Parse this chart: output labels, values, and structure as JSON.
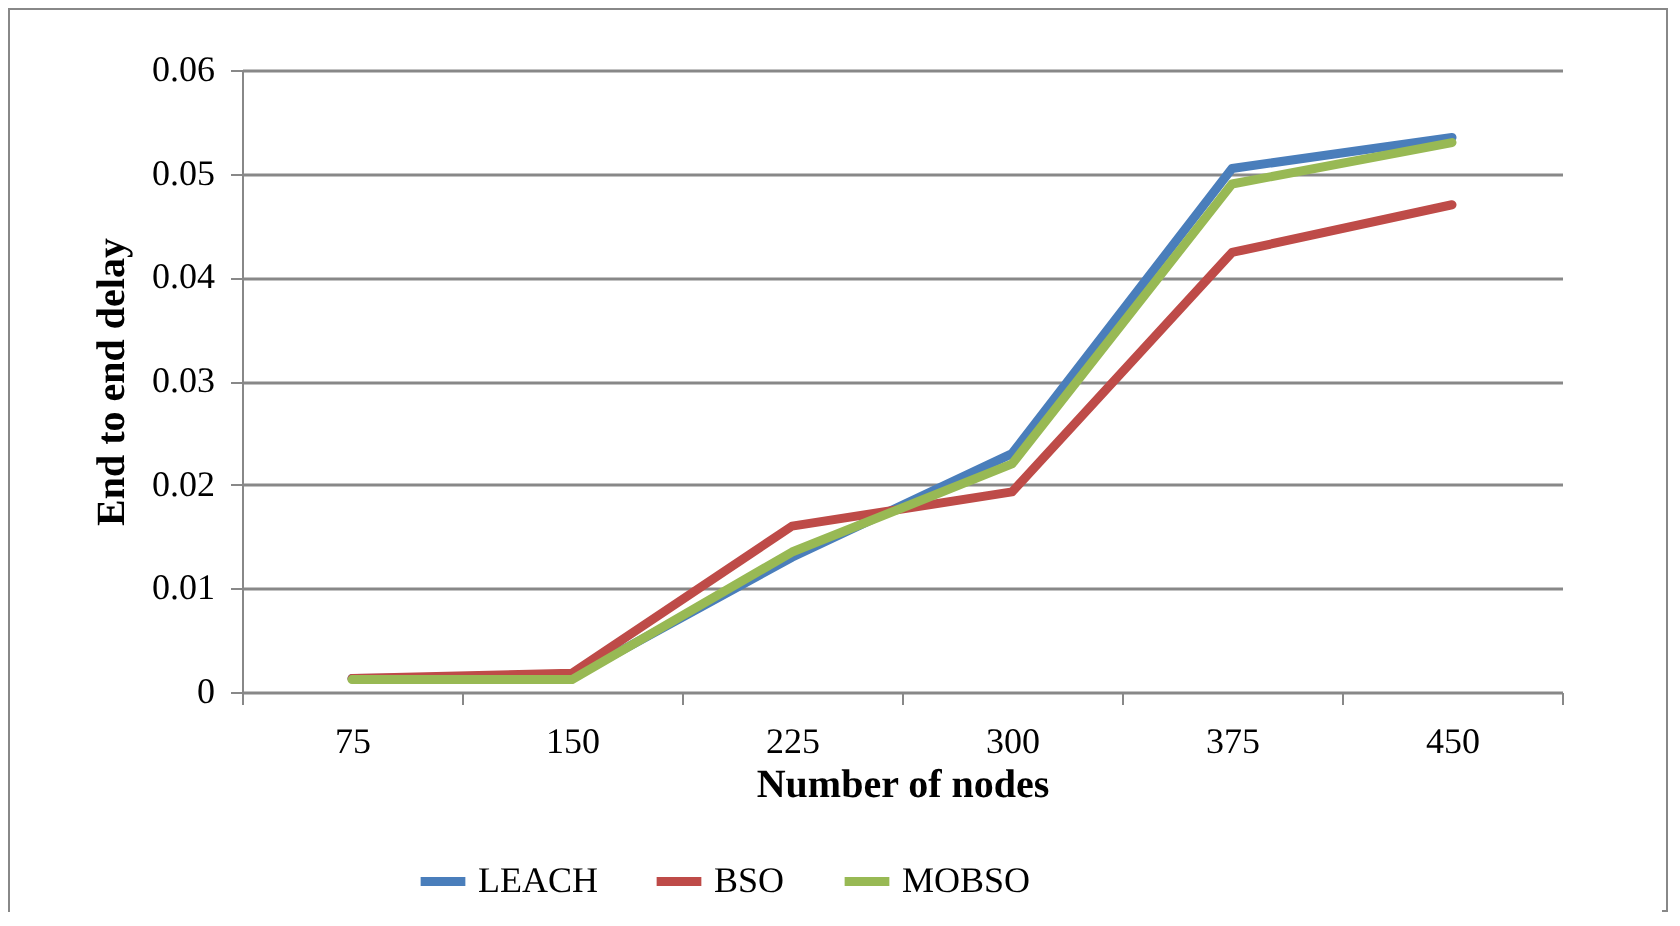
{
  "chart_data": {
    "type": "line",
    "xlabel": "Number of nodes",
    "ylabel": "End to end delay",
    "categories": [
      "75",
      "150",
      "225",
      "300",
      "375",
      "450"
    ],
    "series": [
      {
        "name": "LEACH",
        "color": "#4a7ebb",
        "values": [
          0.0013,
          0.0014,
          0.013,
          0.023,
          0.0505,
          0.0535
        ]
      },
      {
        "name": "BSO",
        "color": "#be4b48",
        "values": [
          0.0013,
          0.0018,
          0.016,
          0.0193,
          0.0424,
          0.047
        ]
      },
      {
        "name": "MOBSO",
        "color": "#98b954",
        "values": [
          0.0012,
          0.0012,
          0.0135,
          0.022,
          0.049,
          0.053
        ]
      }
    ],
    "ylim": [
      0,
      0.06
    ],
    "yticks": [
      0,
      0.01,
      0.02,
      0.03,
      0.04,
      0.05,
      0.06
    ],
    "grid": "y",
    "legend": "bottom",
    "marker": "none",
    "line_style": "solid"
  }
}
